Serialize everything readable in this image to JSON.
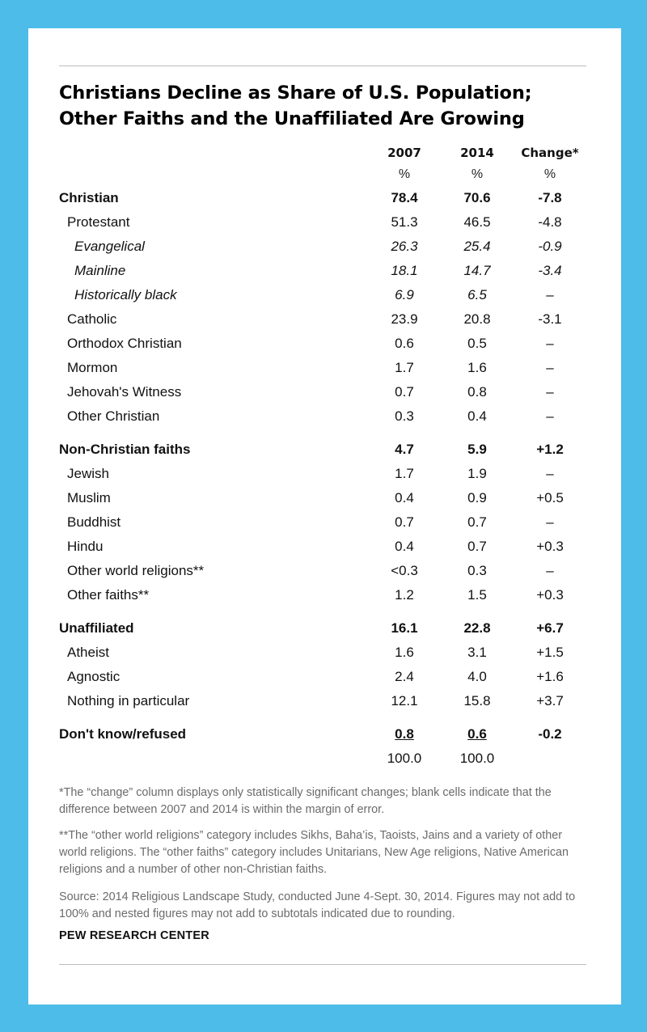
{
  "title": "Christians Decline as Share of U.S. Population; Other Faiths and the Unaffiliated Are Growing",
  "columns": {
    "y2007": "2007",
    "y2014": "2014",
    "change": "Change*"
  },
  "units": {
    "y2007": "%",
    "y2014": "%",
    "change": "%"
  },
  "colors": {
    "frame": "#4dbce9",
    "card": "#ffffff",
    "note_text": "#6b6b6b"
  },
  "chart_data": {
    "type": "table",
    "title": "Christians Decline as Share of U.S. Population; Other Faiths and the Unaffiliated Are Growing",
    "columns": [
      "2007",
      "2014",
      "Change*"
    ],
    "rows": [
      {
        "label": "Christian",
        "level": 0,
        "bold": true,
        "gap": false,
        "y2007": "78.4",
        "y2014": "70.6",
        "change": "-7.8"
      },
      {
        "label": "Protestant",
        "level": 1,
        "bold": false,
        "gap": false,
        "y2007": "51.3",
        "y2014": "46.5",
        "change": "-4.8"
      },
      {
        "label": "Evangelical",
        "level": 2,
        "bold": false,
        "gap": false,
        "y2007": "26.3",
        "y2014": "25.4",
        "change": "-0.9"
      },
      {
        "label": "Mainline",
        "level": 2,
        "bold": false,
        "gap": false,
        "y2007": "18.1",
        "y2014": "14.7",
        "change": "-3.4"
      },
      {
        "label": "Historically black",
        "level": 2,
        "bold": false,
        "gap": false,
        "y2007": "6.9",
        "y2014": "6.5",
        "change": "–"
      },
      {
        "label": "Catholic",
        "level": 1,
        "bold": false,
        "gap": false,
        "y2007": "23.9",
        "y2014": "20.8",
        "change": "-3.1"
      },
      {
        "label": "Orthodox Christian",
        "level": 1,
        "bold": false,
        "gap": false,
        "y2007": "0.6",
        "y2014": "0.5",
        "change": "–"
      },
      {
        "label": "Mormon",
        "level": 1,
        "bold": false,
        "gap": false,
        "y2007": "1.7",
        "y2014": "1.6",
        "change": "–"
      },
      {
        "label": "Jehovah's Witness",
        "level": 1,
        "bold": false,
        "gap": false,
        "y2007": "0.7",
        "y2014": "0.8",
        "change": "–"
      },
      {
        "label": "Other Christian",
        "level": 1,
        "bold": false,
        "gap": false,
        "y2007": "0.3",
        "y2014": "0.4",
        "change": "–"
      },
      {
        "label": "Non-Christian faiths",
        "level": 0,
        "bold": true,
        "gap": true,
        "y2007": "4.7",
        "y2014": "5.9",
        "change": "+1.2"
      },
      {
        "label": "Jewish",
        "level": 1,
        "bold": false,
        "gap": false,
        "y2007": "1.7",
        "y2014": "1.9",
        "change": "–"
      },
      {
        "label": "Muslim",
        "level": 1,
        "bold": false,
        "gap": false,
        "y2007": "0.4",
        "y2014": "0.9",
        "change": "+0.5"
      },
      {
        "label": "Buddhist",
        "level": 1,
        "bold": false,
        "gap": false,
        "y2007": "0.7",
        "y2014": "0.7",
        "change": "–"
      },
      {
        "label": "Hindu",
        "level": 1,
        "bold": false,
        "gap": false,
        "y2007": "0.4",
        "y2014": "0.7",
        "change": "+0.3"
      },
      {
        "label": "Other world religions**",
        "level": 1,
        "bold": false,
        "gap": false,
        "y2007": "<0.3",
        "y2014": "0.3",
        "change": "–"
      },
      {
        "label": "Other faiths**",
        "level": 1,
        "bold": false,
        "gap": false,
        "y2007": "1.2",
        "y2014": "1.5",
        "change": "+0.3"
      },
      {
        "label": "Unaffiliated",
        "level": 0,
        "bold": true,
        "gap": true,
        "y2007": "16.1",
        "y2014": "22.8",
        "change": "+6.7"
      },
      {
        "label": "Atheist",
        "level": 1,
        "bold": false,
        "gap": false,
        "y2007": "1.6",
        "y2014": "3.1",
        "change": "+1.5"
      },
      {
        "label": "Agnostic",
        "level": 1,
        "bold": false,
        "gap": false,
        "y2007": "2.4",
        "y2014": "4.0",
        "change": "+1.6"
      },
      {
        "label": "Nothing in particular",
        "level": 1,
        "bold": false,
        "gap": false,
        "y2007": "12.1",
        "y2014": "15.8",
        "change": "+3.7"
      },
      {
        "label": "Don't know/refused",
        "level": 0,
        "bold": true,
        "gap": true,
        "underline": true,
        "y2007": "0.8",
        "y2014": "0.6",
        "change": "-0.2"
      },
      {
        "label": "",
        "level": 0,
        "bold": false,
        "gap": false,
        "y2007": "100.0",
        "y2014": "100.0",
        "change": ""
      }
    ]
  },
  "notes": {
    "change": "*The “change” column displays only statistically significant changes; blank cells indicate that the difference between 2007 and 2014 is within the margin of error.",
    "other": "**The “other world religions” category includes Sikhs, Baha’is, Taoists, Jains and a variety of other world religions. The “other faiths” category includes Unitarians, New Age religions, Native American religions and a number of other non-Christian faiths.",
    "source": "Source: 2014 Religious Landscape Study, conducted June 4-Sept. 30, 2014. Figures may not add to 100% and nested figures may not add to subtotals indicated due to rounding."
  },
  "brand": "PEW RESEARCH CENTER"
}
